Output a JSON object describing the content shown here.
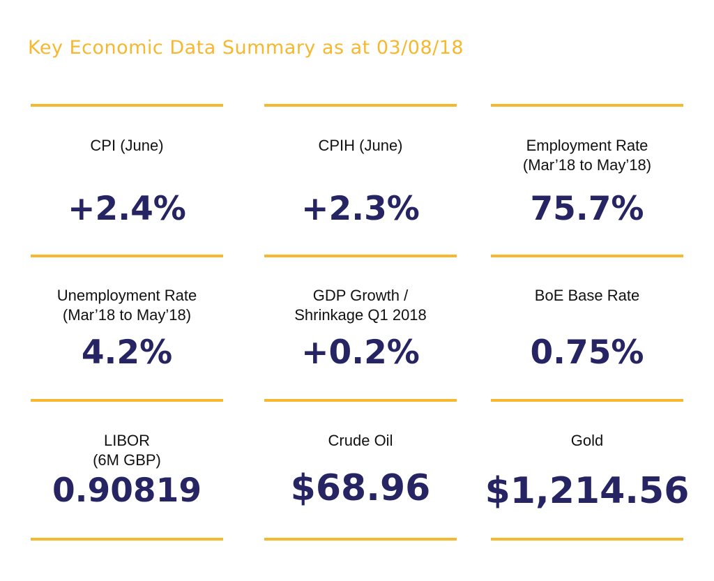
{
  "title": "Key Economic Data Summary as at 03/08/18",
  "colors": {
    "accent": "#f5b82e",
    "value": "#262463",
    "label": "#111111",
    "background": "#ffffff"
  },
  "cards": [
    {
      "label_lines": [
        "CPI (June)"
      ],
      "value": "+2.4%"
    },
    {
      "label_lines": [
        "CPIH (June)"
      ],
      "value": "+2.3%"
    },
    {
      "label_lines": [
        "Employment Rate",
        "(Mar’18 to May’18)"
      ],
      "value": "75.7%"
    },
    {
      "label_lines": [
        "Unemployment Rate",
        "(Mar’18 to May’18)"
      ],
      "value": "4.2%"
    },
    {
      "label_lines": [
        "GDP Growth /",
        "Shrinkage Q1 2018"
      ],
      "value": "+0.2%"
    },
    {
      "label_lines": [
        "BoE Base Rate"
      ],
      "value": "0.75%"
    },
    {
      "label_lines": [
        "LIBOR",
        "(6M GBP)"
      ],
      "value": "0.90819"
    },
    {
      "label_lines": [
        "Crude Oil"
      ],
      "value": "$68.96"
    },
    {
      "label_lines": [
        "Gold"
      ],
      "value": "$1,214.56"
    }
  ]
}
